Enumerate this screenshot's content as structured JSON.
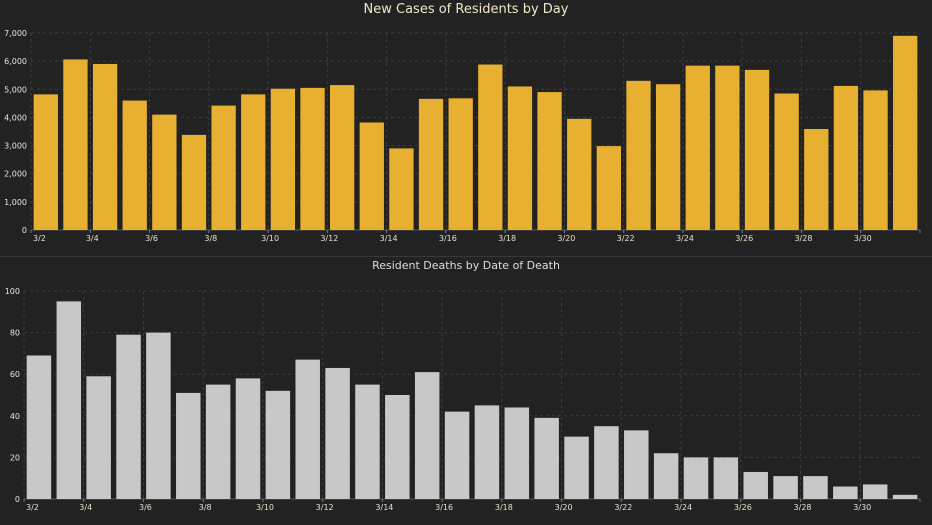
{
  "chart_data": [
    {
      "type": "bar",
      "title": "New Cases of Residents by Day",
      "xlabel": "",
      "ylabel": "",
      "ylim": [
        0,
        7000
      ],
      "yticks": [
        "0",
        "1,000",
        "2,000",
        "3,000",
        "4,000",
        "5,000",
        "6,000",
        "7,000"
      ],
      "bar_color": "#e8b030",
      "grid": true,
      "categories": [
        "3/2",
        "3/3",
        "3/4",
        "3/5",
        "3/6",
        "3/7",
        "3/8",
        "3/9",
        "3/10",
        "3/11",
        "3/12",
        "3/13",
        "3/14",
        "3/15",
        "3/16",
        "3/17",
        "3/18",
        "3/19",
        "3/20",
        "3/21",
        "3/22",
        "3/23",
        "3/24",
        "3/25",
        "3/26",
        "3/27",
        "3/28",
        "3/29",
        "3/30",
        "3/31"
      ],
      "xtick_labels": [
        "3/2",
        "3/4",
        "3/6",
        "3/8",
        "3/10",
        "3/12",
        "3/14",
        "3/16",
        "3/18",
        "3/20",
        "3/22",
        "3/24",
        "3/26",
        "3/28",
        "3/30"
      ],
      "values": [
        4820,
        6060,
        5900,
        4600,
        4100,
        3380,
        4420,
        4820,
        5020,
        5050,
        5150,
        3820,
        2900,
        4660,
        4680,
        5880,
        5100,
        4900,
        3950,
        2980,
        5300,
        5180,
        5840,
        5840,
        5690,
        4850,
        3590,
        5120,
        4960,
        6900
      ]
    },
    {
      "type": "bar",
      "title": "Resident Deaths by Date of Death",
      "xlabel": "",
      "ylabel": "",
      "ylim": [
        0,
        100
      ],
      "yticks": [
        "0",
        "20",
        "40",
        "60",
        "80",
        "100"
      ],
      "bar_color": "#c8c8c8",
      "grid": true,
      "categories": [
        "3/2",
        "3/3",
        "3/4",
        "3/5",
        "3/6",
        "3/7",
        "3/8",
        "3/9",
        "3/10",
        "3/11",
        "3/12",
        "3/13",
        "3/14",
        "3/15",
        "3/16",
        "3/17",
        "3/18",
        "3/19",
        "3/20",
        "3/21",
        "3/22",
        "3/23",
        "3/24",
        "3/25",
        "3/26",
        "3/27",
        "3/28",
        "3/29",
        "3/30",
        "3/31"
      ],
      "xtick_labels": [
        "3/2",
        "3/4",
        "3/6",
        "3/8",
        "3/10",
        "3/12",
        "3/14",
        "3/16",
        "3/18",
        "3/20",
        "3/22",
        "3/24",
        "3/26",
        "3/28",
        "3/30"
      ],
      "values": [
        69,
        95,
        59,
        79,
        80,
        51,
        55,
        58,
        52,
        67,
        63,
        55,
        50,
        61,
        42,
        45,
        44,
        39,
        30,
        35,
        33,
        22,
        20,
        20,
        13,
        11,
        11,
        6,
        7,
        2
      ]
    }
  ]
}
